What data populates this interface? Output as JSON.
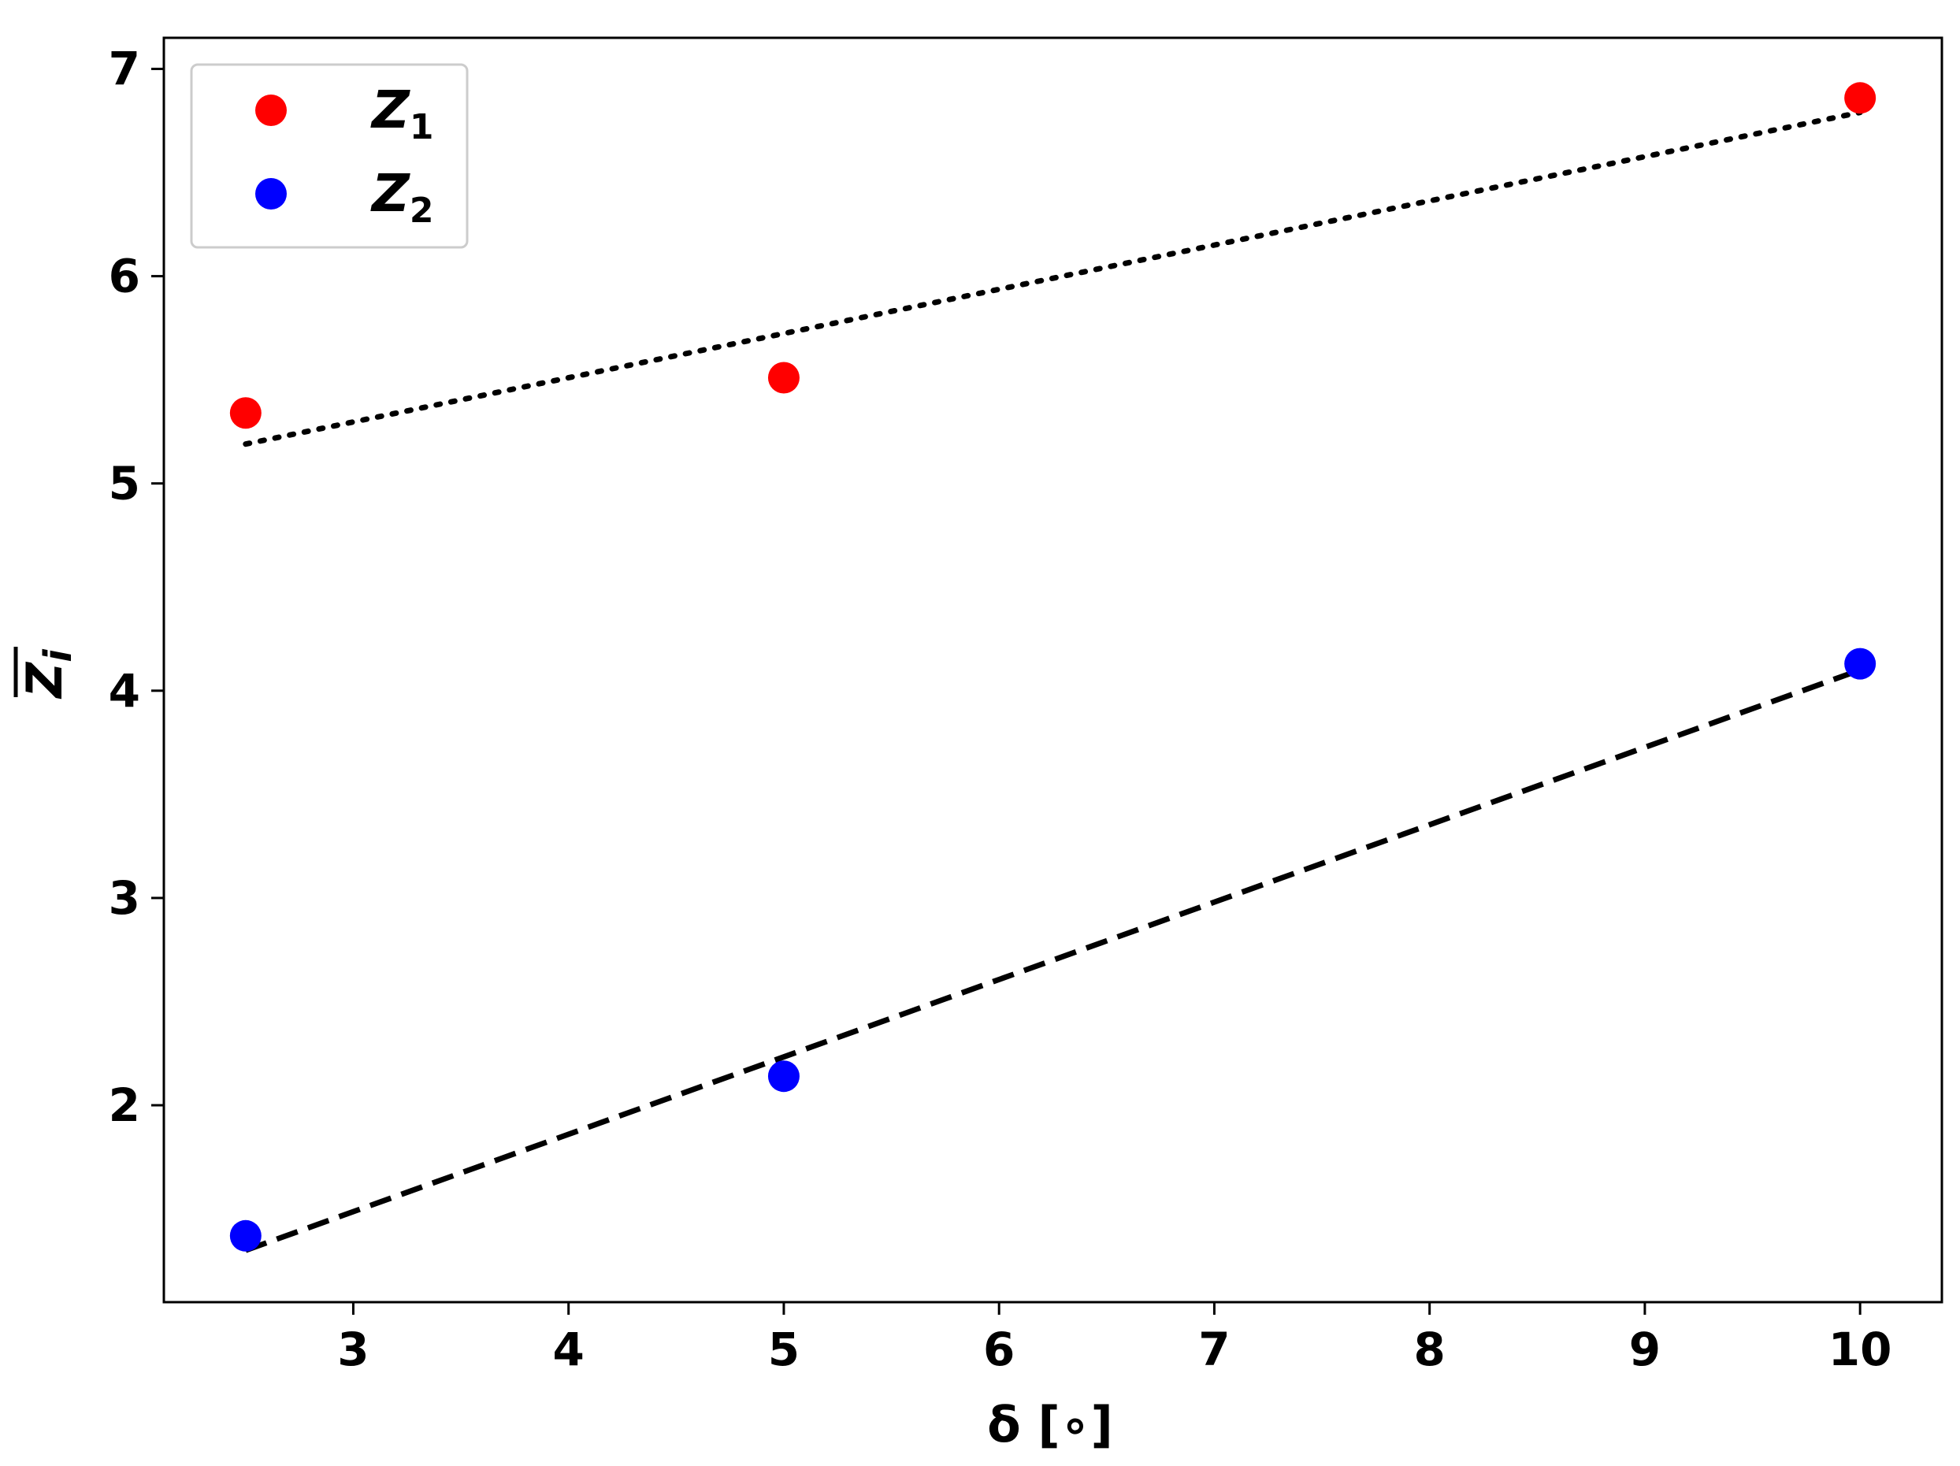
{
  "chart_data": {
    "type": "scatter",
    "xlabel": "δ [∘]",
    "ylabel_main": "Z",
    "ylabel_sub": "i",
    "xlim": [
      2.12,
      10.38
    ],
    "ylim": [
      1.05,
      7.15
    ],
    "xticks": [
      3,
      4,
      5,
      6,
      7,
      8,
      9,
      10
    ],
    "yticks": [
      2,
      3,
      4,
      5,
      6,
      7
    ],
    "legend_position": "upper-left",
    "grid": false,
    "series": [
      {
        "name": "Z",
        "name_sub": "1",
        "color": "#ff0000",
        "x": [
          2.5,
          5.0,
          10.0
        ],
        "y": [
          5.34,
          5.51,
          6.86
        ],
        "fit": {
          "x": [
            2.5,
            10.0
          ],
          "y": [
            5.19,
            6.79
          ],
          "style": "dotted"
        }
      },
      {
        "name": "Z",
        "name_sub": "2",
        "color": "#0000ff",
        "x": [
          2.5,
          5.0,
          10.0
        ],
        "y": [
          1.37,
          2.14,
          4.13
        ],
        "fit": {
          "x": [
            2.5,
            10.0
          ],
          "y": [
            1.3,
            4.1
          ],
          "style": "dashed"
        }
      }
    ]
  }
}
